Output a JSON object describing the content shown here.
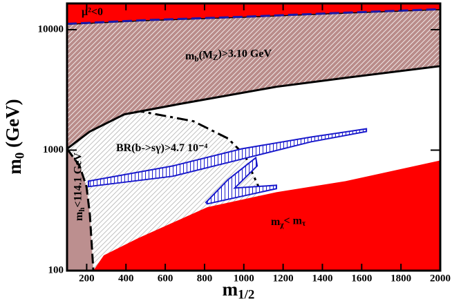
{
  "chart_data": {
    "type": "region",
    "xlabel": [
      "m",
      "1/2"
    ],
    "ylabel": [
      "m",
      "0",
      " (GeV)"
    ],
    "xlim": [
      100,
      2000
    ],
    "ylim": [
      100,
      16500
    ],
    "xticks": [
      200,
      400,
      600,
      800,
      1000,
      1200,
      1400,
      1600,
      1800,
      2000
    ],
    "yticks": [
      100,
      1000,
      10000
    ],
    "yscale": "log",
    "regions": [
      {
        "label": [
          "BR(b->sγ)>4.7 10⁻⁴"
        ],
        "color": "#ffffff",
        "hatch_color": "#b0b0b0",
        "fill_to": "bottom",
        "border": "dashdot",
        "border_color": "#000000",
        "x": [
          100,
          146,
          462,
          743,
          919,
          1007,
          1043,
          1078
        ],
        "values": [
          2061,
          2061,
          2118,
          1738,
          1251,
          900,
          648,
          485
        ]
      },
      {
        "label": [
          "m",
          "b",
          "(M",
          "Z",
          ")>3.10 GeV"
        ],
        "color": "#b98c8a",
        "hatch_color": "#ffffff",
        "fill_to": "none",
        "border": "solid",
        "border_color": "#000000",
        "x": [
          100,
          216,
          392,
          673,
          1166,
          1518,
          2000,
          2000,
          1500,
          1000,
          500,
          115,
          100
        ],
        "values": [
          1026,
          1427,
          1983,
          2415,
          3357,
          3981,
          4980,
          14800,
          13800,
          12800,
          12000,
          11200,
          11200
        ]
      },
      {
        "label": [
          "μ²<0"
        ],
        "color": "#ff0000",
        "fill_to": "top",
        "border": "dashed",
        "border_color": "#1a1aaa",
        "x": [
          100,
          115,
          500,
          1000,
          1500,
          2000
        ],
        "values": [
          11200,
          11200,
          12000,
          12800,
          13800,
          14800
        ]
      },
      {
        "label": [
          "m",
          "χ",
          "< m",
          "τ"
        ],
        "color": "#ff0000",
        "fill_to": "bottom",
        "border": "none",
        "border_color": "#ff0000",
        "x": [
          234,
          287,
          462,
          814,
          1166,
          1518,
          2000
        ],
        "values": [
          100,
          134,
          186,
          336,
          448,
          553,
          821
        ]
      },
      {
        "label": [
          "m",
          "h",
          "<114.1 GeV"
        ],
        "color": "#bc8f8f",
        "fill_to": "bottom",
        "border": "dashed",
        "border_color": "#000000",
        "x": [
          100,
          164,
          199,
          216,
          234
        ],
        "values": [
          1026,
          740,
          498,
          294,
          100
        ]
      },
      {
        "color": "#ffffff",
        "hatch_color": "#1a1acc",
        "fill_to": "none",
        "border": "solid",
        "border_color": "#1a1acc",
        "x": [
          209,
          638,
          990,
          1342,
          1624,
          1624,
          1342,
          990,
          638,
          209
        ],
        "values": [
          498,
          607,
          843,
          1172,
          1427,
          1503,
          1285,
          1026,
          739,
          553
        ]
      },
      {
        "color": "#ffffff",
        "hatch_color": "#1a1acc",
        "fill_to": "none",
        "border": "solid",
        "border_color": "#1a1acc",
        "x": [
          807,
          919,
          1061,
          1068,
          954,
          1166,
          1166,
          814
        ],
        "values": [
          368,
          568,
          865,
          740,
          485,
          511,
          479,
          358
        ]
      }
    ]
  }
}
